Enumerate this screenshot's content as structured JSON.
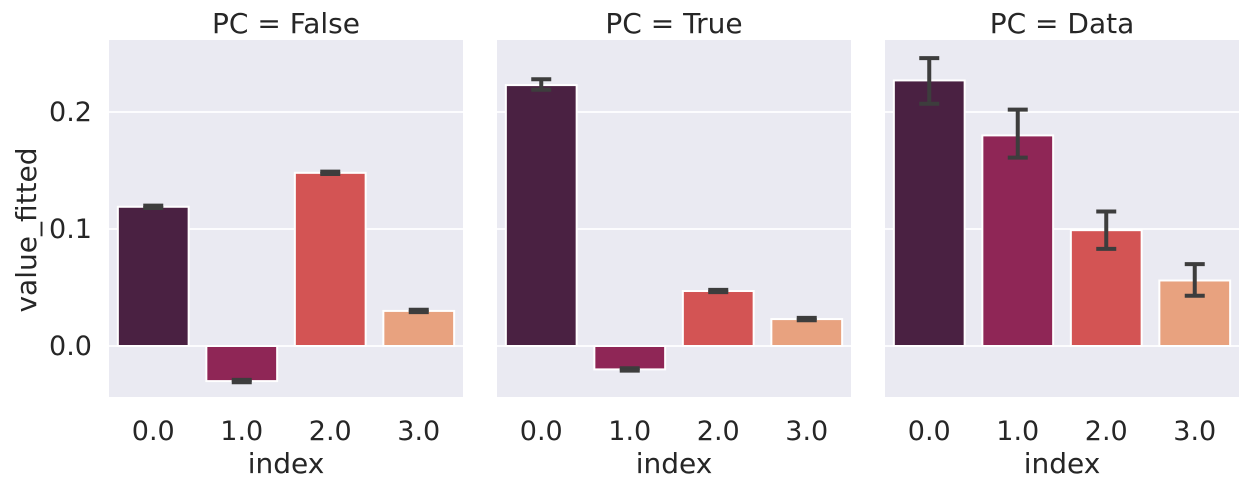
{
  "chart_data": {
    "type": "bar",
    "ylabel": "value_fitted",
    "xlabel": "index",
    "categories": [
      "0.0",
      "1.0",
      "2.0",
      "3.0"
    ],
    "yticks": [
      "0.0",
      "0.1",
      "0.2"
    ],
    "ylim": [
      -0.047,
      0.262
    ],
    "grid": true,
    "colors": [
      "#4a2142",
      "#8f2656",
      "#d35454",
      "#e8a27f"
    ],
    "background": "#eaeaf2",
    "panels": [
      {
        "title": "PC = False",
        "values": [
          0.119,
          -0.03,
          0.148,
          0.03
        ],
        "errors": [
          [
            0.118,
            0.12
          ],
          [
            -0.031,
            -0.029
          ],
          [
            0.147,
            0.149
          ],
          [
            0.029,
            0.031
          ]
        ]
      },
      {
        "title": "PC = True",
        "values": [
          0.223,
          -0.02,
          0.047,
          0.023
        ],
        "errors": [
          [
            0.219,
            0.228
          ],
          [
            -0.021,
            -0.019
          ],
          [
            0.046,
            0.048
          ],
          [
            0.022,
            0.024
          ]
        ]
      },
      {
        "title": "PC = Data",
        "values": [
          0.227,
          0.18,
          0.099,
          0.056
        ],
        "errors": [
          [
            0.207,
            0.246
          ],
          [
            0.161,
            0.202
          ],
          [
            0.083,
            0.115
          ],
          [
            0.043,
            0.07
          ]
        ]
      }
    ]
  }
}
